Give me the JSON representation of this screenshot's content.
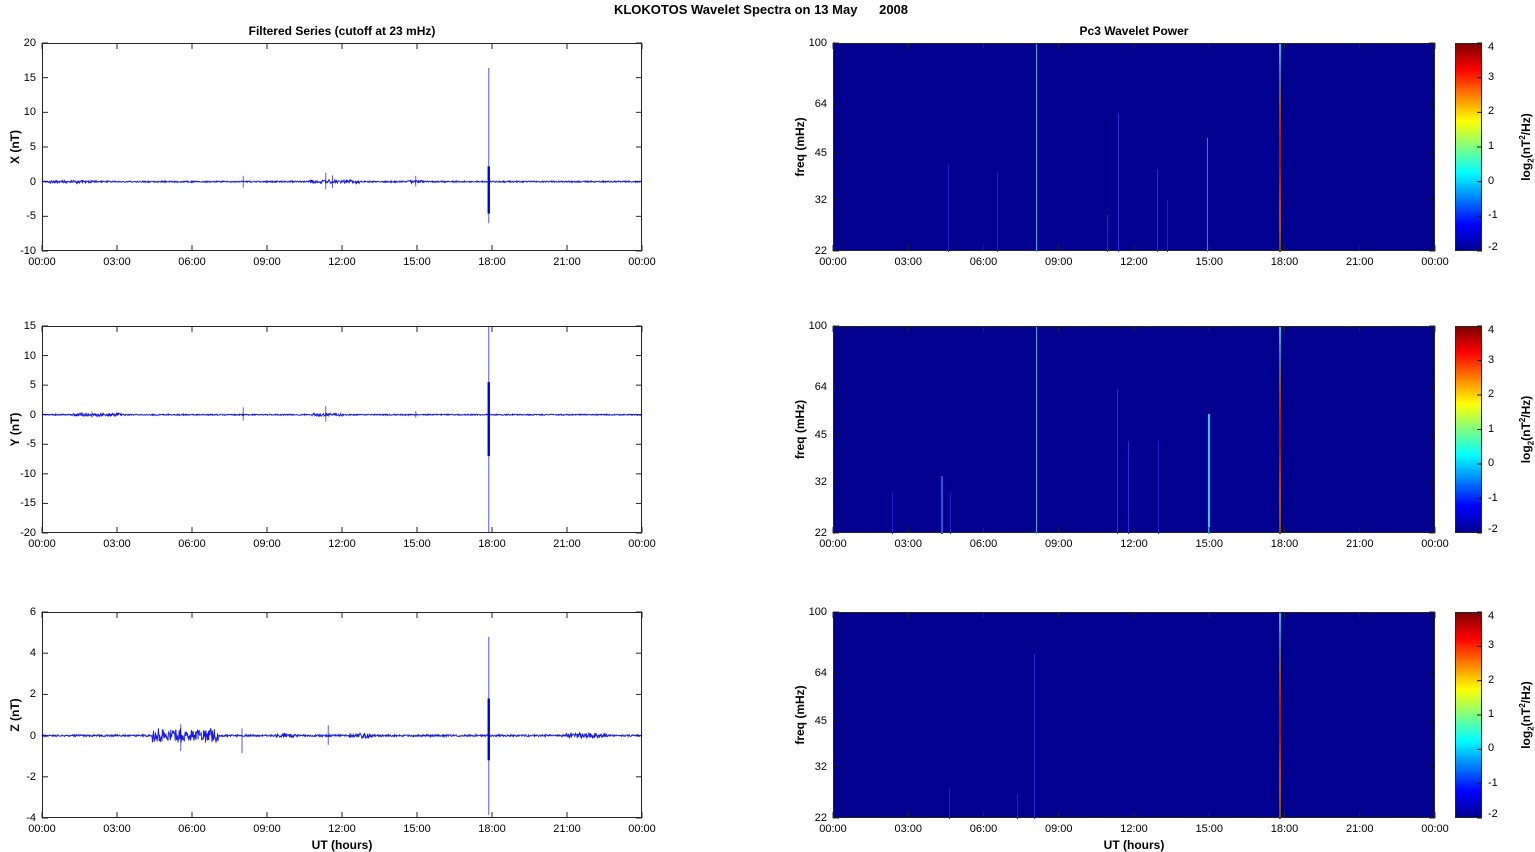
{
  "figure": {
    "title": "KLOKOTOS Wavelet Spectra on 13 May      2008"
  },
  "colors": {
    "series_line": "#0000E0",
    "spectrogram_bg": "#00028F",
    "axis": "#262626",
    "colorbar_gradient": [
      "#00008F",
      "#0000FF",
      "#00FFFF",
      "#FFFF00",
      "#FF0000",
      "#800000"
    ],
    "colorbar_stops": [
      0,
      12.5,
      37.5,
      62.5,
      87.5,
      100
    ],
    "event_gradient": [
      "#2FBFD8",
      "#4A6FA8",
      "#8A5511",
      "#AA2211",
      "#8F1F11",
      "#B33A11",
      "#A85511",
      "#6F4422"
    ]
  },
  "time_axis": {
    "tick_labels": [
      "00:00",
      "03:00",
      "06:00",
      "09:00",
      "12:00",
      "15:00",
      "18:00",
      "21:00",
      "00:00"
    ],
    "tick_hours": [
      0,
      3,
      6,
      9,
      12,
      15,
      18,
      21,
      24
    ],
    "xlabel": "UT (hours)"
  },
  "colorbar": {
    "ticks": [
      4,
      3,
      2,
      1,
      0,
      -1,
      -2
    ],
    "label_pre": "log",
    "label_sub": "2",
    "label_mid": "(nT",
    "label_sup": "2",
    "label_post": "/Hz)"
  },
  "chart_data": [
    {
      "id": "x-filtered-series",
      "type": "line",
      "title": "Filtered Series (cutoff at 23 mHz)",
      "ylabel": "X (nT)",
      "xlabel": "",
      "x_ticks": [
        "00:00",
        "03:00",
        "06:00",
        "09:00",
        "12:00",
        "15:00",
        "18:00",
        "21:00",
        "00:00"
      ],
      "ylim": [
        -10,
        20
      ],
      "yticks": [
        20,
        15,
        10,
        5,
        0,
        -5,
        -10
      ],
      "baseline": 0,
      "noise_amp": 0.1,
      "bursts": [
        [
          0.3,
          2.2,
          0.16
        ],
        [
          10.7,
          12.7,
          0.22
        ],
        [
          14.6,
          15.3,
          0.15
        ]
      ],
      "spikes": [
        {
          "t": 8.05,
          "hi": 0.85,
          "lo": -0.85
        },
        {
          "t": 11.35,
          "hi": 1.3,
          "lo": -1.1
        },
        {
          "t": 11.62,
          "hi": 0.9,
          "lo": -0.9
        },
        {
          "t": 14.95,
          "hi": 0.85,
          "lo": -0.7
        },
        {
          "t": 17.87,
          "hi": 16.4,
          "lo": -6.0,
          "core_hi": 2.2,
          "core_lo": -4.6
        }
      ]
    },
    {
      "id": "y-filtered-series",
      "type": "line",
      "title": "",
      "ylabel": "Y (nT)",
      "xlabel": "",
      "x_ticks": [
        "00:00",
        "03:00",
        "06:00",
        "09:00",
        "12:00",
        "15:00",
        "18:00",
        "21:00",
        "00:00"
      ],
      "ylim": [
        -20,
        15
      ],
      "yticks": [
        15,
        10,
        5,
        0,
        -5,
        -10,
        -15,
        -20
      ],
      "baseline": 0,
      "noise_amp": 0.1,
      "bursts": [
        [
          1.2,
          3.2,
          0.18
        ],
        [
          10.8,
          12.0,
          0.18
        ]
      ],
      "spikes": [
        {
          "t": 2.0,
          "hi": 0.55,
          "lo": -0.5
        },
        {
          "t": 8.05,
          "hi": 1.25,
          "lo": -1.0
        },
        {
          "t": 11.35,
          "hi": 1.45,
          "lo": -1.15
        },
        {
          "t": 14.95,
          "hi": 0.6,
          "lo": -0.5
        },
        {
          "t": 17.87,
          "hi": 15.0,
          "lo": -20.0,
          "core_hi": 5.5,
          "core_lo": -7.0
        }
      ]
    },
    {
      "id": "z-filtered-series",
      "type": "line",
      "title": "",
      "ylabel": "Z (nT)",
      "xlabel": "UT (hours)",
      "x_ticks": [
        "00:00",
        "03:00",
        "06:00",
        "09:00",
        "12:00",
        "15:00",
        "18:00",
        "21:00",
        "00:00"
      ],
      "ylim": [
        -4,
        6
      ],
      "yticks": [
        6,
        4,
        2,
        0,
        -2,
        -4
      ],
      "baseline": 0,
      "noise_amp": 0.045,
      "bursts": [
        [
          4.4,
          7.05,
          0.33
        ],
        [
          9.3,
          10.2,
          0.07
        ],
        [
          12.3,
          13.3,
          0.1
        ],
        [
          20.95,
          22.6,
          0.12
        ]
      ],
      "spikes": [
        {
          "t": 5.55,
          "hi": 0.55,
          "lo": -0.75
        },
        {
          "t": 8.0,
          "hi": 0.35,
          "lo": -0.85
        },
        {
          "t": 11.45,
          "hi": 0.5,
          "lo": -0.45
        },
        {
          "t": 17.87,
          "hi": 4.8,
          "lo": -3.85,
          "core_hi": 1.8,
          "core_lo": -1.2
        }
      ]
    },
    {
      "id": "x-wavelet-power",
      "type": "heatmap",
      "title": "Pc3 Wavelet Power",
      "ylabel": "freq (mHz)",
      "xlabel": "",
      "x_ticks": [
        "00:00",
        "03:00",
        "06:00",
        "09:00",
        "12:00",
        "15:00",
        "18:00",
        "21:00",
        "00:00"
      ],
      "yscale": "log",
      "ylim": [
        22,
        100
      ],
      "yticks": [
        100,
        64,
        45,
        32,
        22
      ],
      "value_range": [
        -2,
        4
      ],
      "streaks": [
        {
          "t": 8.07,
          "y0": 0,
          "y1": 1,
          "color": "#3FAAE0",
          "w": 1.5,
          "alpha": 0.95
        },
        {
          "t": 4.55,
          "y0": 0.58,
          "y1": 1,
          "color": "#1726C8",
          "w": 1,
          "alpha": 1
        },
        {
          "t": 6.5,
          "y0": 0.62,
          "y1": 1,
          "color": "#1726C8",
          "w": 1,
          "alpha": 1
        },
        {
          "t": 10.9,
          "y0": 0.82,
          "y1": 1,
          "color": "#1A2CD4",
          "w": 1,
          "alpha": 1
        },
        {
          "t": 11.35,
          "y0": 0.33,
          "y1": 1,
          "color": "#1E32DA",
          "w": 1,
          "alpha": 1
        },
        {
          "t": 12.9,
          "y0": 0.6,
          "y1": 1,
          "color": "#1E32DA",
          "w": 1,
          "alpha": 1
        },
        {
          "t": 13.3,
          "y0": 0.75,
          "y1": 1,
          "color": "#1726C8",
          "w": 1,
          "alpha": 1
        },
        {
          "t": 14.9,
          "y0": 0.45,
          "y1": 1,
          "color": "#2E7FE8",
          "w": 1,
          "alpha": 1
        },
        {
          "t": 17.8,
          "y0": 0,
          "y1": 1,
          "event": true,
          "w": 2
        }
      ]
    },
    {
      "id": "y-wavelet-power",
      "type": "heatmap",
      "title": "",
      "ylabel": "freq (mHz)",
      "xlabel": "",
      "x_ticks": [
        "00:00",
        "03:00",
        "06:00",
        "09:00",
        "12:00",
        "15:00",
        "18:00",
        "21:00",
        "00:00"
      ],
      "yscale": "log",
      "ylim": [
        22,
        100
      ],
      "yticks": [
        100,
        64,
        45,
        32,
        22
      ],
      "value_range": [
        -2,
        4
      ],
      "streaks": [
        {
          "t": 8.07,
          "y0": 0,
          "y1": 1,
          "color": "#3FAAE0",
          "w": 1.5,
          "alpha": 0.95
        },
        {
          "t": 2.35,
          "y0": 0.8,
          "y1": 1,
          "color": "#1726C8",
          "w": 1,
          "alpha": 1
        },
        {
          "t": 4.3,
          "y0": 0.72,
          "y1": 1,
          "color": "#2E50E0",
          "w": 1.5,
          "alpha": 1
        },
        {
          "t": 4.65,
          "y0": 0.8,
          "y1": 1,
          "color": "#1726C8",
          "w": 1,
          "alpha": 1
        },
        {
          "t": 11.3,
          "y0": 0.3,
          "y1": 1,
          "color": "#1E32DA",
          "w": 1,
          "alpha": 1
        },
        {
          "t": 11.75,
          "y0": 0.55,
          "y1": 1,
          "color": "#1E32DA",
          "w": 1,
          "alpha": 1
        },
        {
          "t": 12.95,
          "y0": 0.55,
          "y1": 1,
          "color": "#1726C8",
          "w": 1,
          "alpha": 1
        },
        {
          "t": 14.95,
          "y0": 0.42,
          "y1": 1,
          "color": "#35C8F0",
          "w": 1.2,
          "alpha": 1
        },
        {
          "t": 17.8,
          "y0": 0,
          "y1": 1,
          "event": true,
          "w": 2
        }
      ]
    },
    {
      "id": "z-wavelet-power",
      "type": "heatmap",
      "title": "",
      "ylabel": "freq (mHz)",
      "xlabel": "UT (hours)",
      "x_ticks": [
        "00:00",
        "03:00",
        "06:00",
        "09:00",
        "12:00",
        "15:00",
        "18:00",
        "21:00",
        "00:00"
      ],
      "yscale": "log",
      "ylim": [
        22,
        100
      ],
      "yticks": [
        100,
        64,
        45,
        32,
        22
      ],
      "value_range": [
        -2,
        4
      ],
      "streaks": [
        {
          "t": 8.0,
          "y0": 0.2,
          "y1": 1,
          "color": "#1E32DA",
          "w": 1,
          "alpha": 0.9
        },
        {
          "t": 4.6,
          "y0": 0.85,
          "y1": 1,
          "color": "#1726C8",
          "w": 1,
          "alpha": 1
        },
        {
          "t": 7.3,
          "y0": 0.88,
          "y1": 1,
          "color": "#1726C8",
          "w": 1,
          "alpha": 1
        },
        {
          "t": 17.8,
          "y0": 0,
          "y1": 1,
          "event": true,
          "w": 2
        }
      ]
    }
  ]
}
